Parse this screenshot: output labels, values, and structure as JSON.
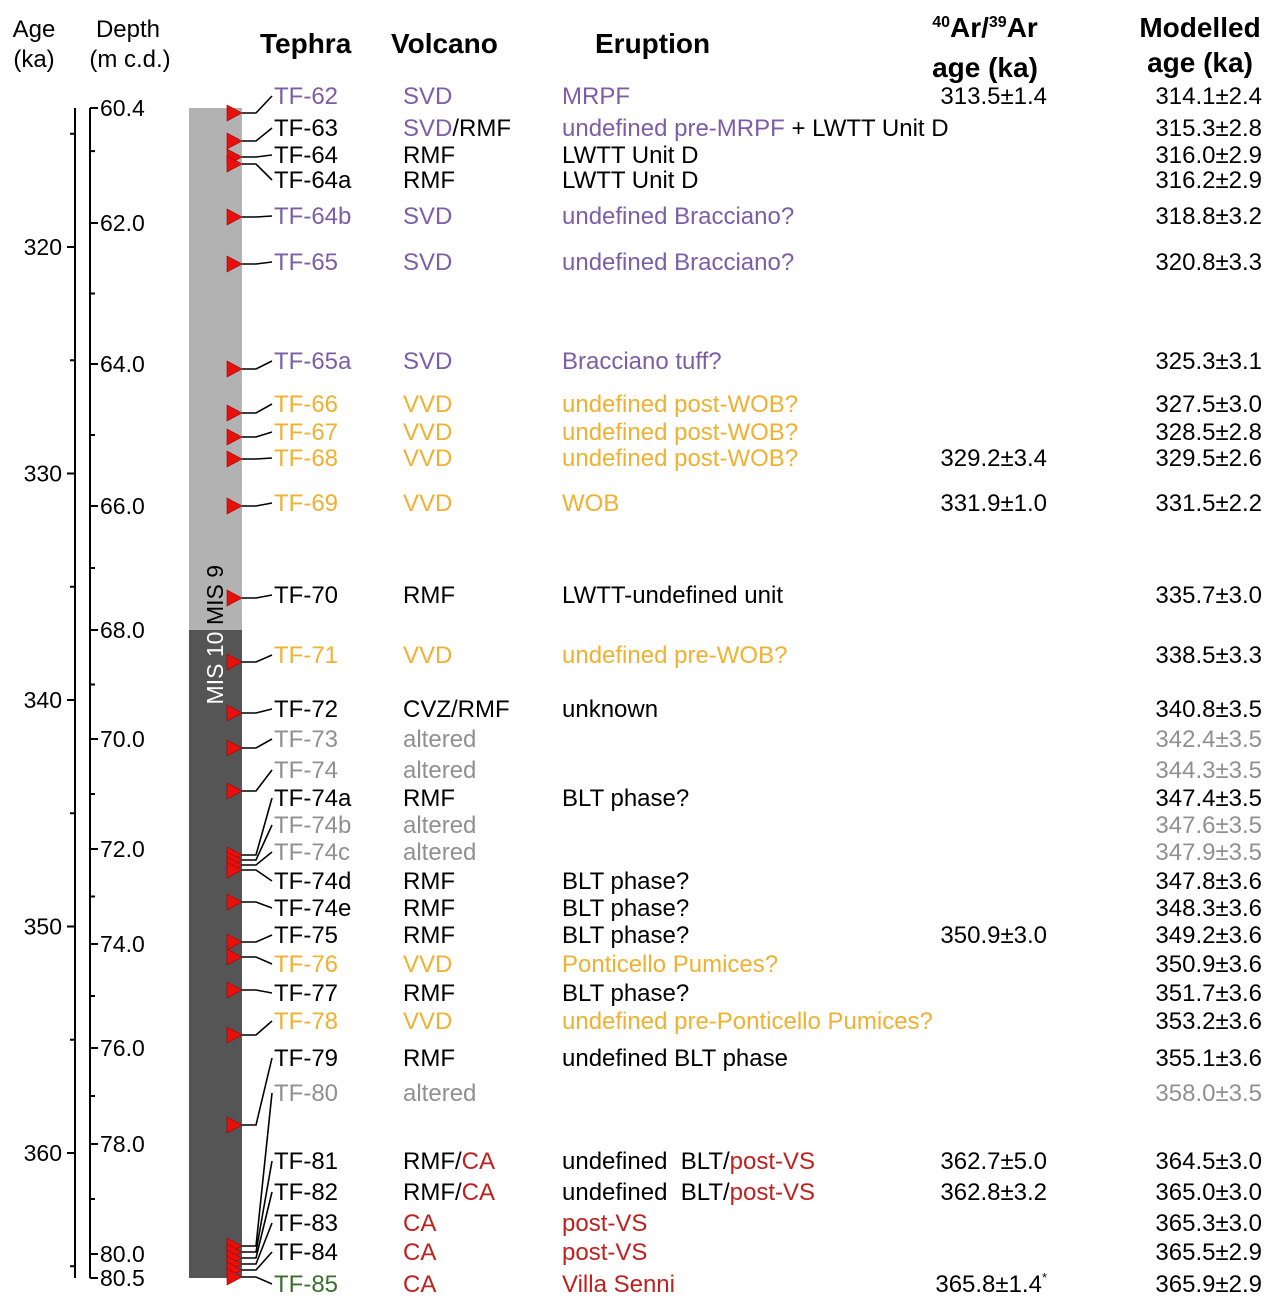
{
  "header": {
    "age": "Age",
    "age_unit": "(ka)",
    "depth": "Depth",
    "depth_unit": "(m c.d.)",
    "tephra": "Tephra",
    "volcano": "Volcano",
    "eruption": "Eruption",
    "ar_sup1": "40",
    "ar_mid": "Ar/",
    "ar_sup2": "39",
    "ar_end": "Ar",
    "ar_line2": "age (ka)",
    "modelled_line1": "Modelled",
    "modelled_line2": "age (ka)"
  },
  "colors": {
    "svd": "#7b5ea7",
    "vvd": "#f0b030",
    "altered": "#909090",
    "ca": "#c0201e",
    "villa": "#3a6e2e",
    "black": "#000000",
    "mis9": "#b2b2b2",
    "mis10": "#555555",
    "marker": "#e8100c"
  },
  "stages": [
    {
      "label": "MIS 9",
      "from_depth": 60.4,
      "to_depth": 68.0,
      "color": "#b2b2b2",
      "text_color": "#000000"
    },
    {
      "label": "MIS 10",
      "from_depth": 68.0,
      "to_depth": 80.5,
      "color": "#555555",
      "text_color": "#ffffff"
    }
  ],
  "age_ticks": [
    "320",
    "330",
    "340",
    "350",
    "360"
  ],
  "depth_ticks": [
    "60.4",
    "62.0",
    "64.0",
    "66.0",
    "68.0",
    "70.0",
    "72.0",
    "74.0",
    "76.0",
    "78.0",
    "80.0",
    "80.5"
  ],
  "rows": [
    {
      "tephra": "TF-62",
      "tc": "svd",
      "volcano": [
        {
          "t": "SVD",
          "c": "svd"
        }
      ],
      "eruption": [
        {
          "t": "MRPF",
          "c": "svd"
        }
      ],
      "ar_age": "313.5±1.4",
      "ar_note": "",
      "modelled": "314.1±2.4",
      "mc": "black"
    },
    {
      "tephra": "TF-63",
      "tc": "black",
      "volcano": [
        {
          "t": "SVD",
          "c": "svd"
        },
        {
          "t": "/RMF",
          "c": "black"
        }
      ],
      "eruption": [
        {
          "t": "undefined pre-MRPF",
          "c": "svd"
        },
        {
          "t": " + LWTT Unit D",
          "c": "black"
        }
      ],
      "ar_age": "",
      "ar_note": "",
      "modelled": "315.3±2.8",
      "mc": "black"
    },
    {
      "tephra": "TF-64",
      "tc": "black",
      "volcano": [
        {
          "t": "RMF",
          "c": "black"
        }
      ],
      "eruption": [
        {
          "t": "LWTT Unit D",
          "c": "black"
        }
      ],
      "ar_age": "",
      "ar_note": "",
      "modelled": "316.0±2.9",
      "mc": "black"
    },
    {
      "tephra": "TF-64a",
      "tc": "black",
      "volcano": [
        {
          "t": "RMF",
          "c": "black"
        }
      ],
      "eruption": [
        {
          "t": "LWTT Unit D",
          "c": "black"
        }
      ],
      "ar_age": "",
      "ar_note": "",
      "modelled": "316.2±2.9",
      "mc": "black"
    },
    {
      "tephra": "TF-64b",
      "tc": "svd",
      "volcano": [
        {
          "t": "SVD",
          "c": "svd"
        }
      ],
      "eruption": [
        {
          "t": "undefined Bracciano?",
          "c": "svd"
        }
      ],
      "ar_age": "",
      "ar_note": "",
      "modelled": "318.8±3.2",
      "mc": "black"
    },
    {
      "tephra": "TF-65",
      "tc": "svd",
      "volcano": [
        {
          "t": "SVD",
          "c": "svd"
        }
      ],
      "eruption": [
        {
          "t": "undefined Bracciano?",
          "c": "svd"
        }
      ],
      "ar_age": "",
      "ar_note": "",
      "modelled": "320.8±3.3",
      "mc": "black"
    },
    {
      "tephra": "TF-65a",
      "tc": "svd",
      "volcano": [
        {
          "t": "SVD",
          "c": "svd"
        }
      ],
      "eruption": [
        {
          "t": "Bracciano tuff?",
          "c": "svd"
        }
      ],
      "ar_age": "",
      "ar_note": "",
      "modelled": "325.3±3.1",
      "mc": "black"
    },
    {
      "tephra": "TF-66",
      "tc": "vvd",
      "volcano": [
        {
          "t": "VVD",
          "c": "vvd"
        }
      ],
      "eruption": [
        {
          "t": "undefined post-WOB?",
          "c": "vvd"
        }
      ],
      "ar_age": "",
      "ar_note": "",
      "modelled": "327.5±3.0",
      "mc": "black"
    },
    {
      "tephra": "TF-67",
      "tc": "vvd",
      "volcano": [
        {
          "t": "VVD",
          "c": "vvd"
        }
      ],
      "eruption": [
        {
          "t": "undefined post-WOB?",
          "c": "vvd"
        }
      ],
      "ar_age": "",
      "ar_note": "",
      "modelled": "328.5±2.8",
      "mc": "black"
    },
    {
      "tephra": "TF-68",
      "tc": "vvd",
      "volcano": [
        {
          "t": "VVD",
          "c": "vvd"
        }
      ],
      "eruption": [
        {
          "t": "undefined post-WOB?",
          "c": "vvd"
        }
      ],
      "ar_age": "329.2±3.4",
      "ar_note": "",
      "modelled": "329.5±2.6",
      "mc": "black"
    },
    {
      "tephra": "TF-69",
      "tc": "vvd",
      "volcano": [
        {
          "t": "VVD",
          "c": "vvd"
        }
      ],
      "eruption": [
        {
          "t": "WOB",
          "c": "vvd"
        }
      ],
      "ar_age": "331.9±1.0",
      "ar_note": "",
      "modelled": "331.5±2.2",
      "mc": "black"
    },
    {
      "tephra": "TF-70",
      "tc": "black",
      "volcano": [
        {
          "t": "RMF",
          "c": "black"
        }
      ],
      "eruption": [
        {
          "t": "LWTT-undefined unit",
          "c": "black"
        }
      ],
      "ar_age": "",
      "ar_note": "",
      "modelled": "335.7±3.0",
      "mc": "black"
    },
    {
      "tephra": "TF-71",
      "tc": "vvd",
      "volcano": [
        {
          "t": "VVD",
          "c": "vvd"
        }
      ],
      "eruption": [
        {
          "t": "undefined pre-WOB?",
          "c": "vvd"
        }
      ],
      "ar_age": "",
      "ar_note": "",
      "modelled": "338.5±3.3",
      "mc": "black"
    },
    {
      "tephra": "TF-72",
      "tc": "black",
      "volcano": [
        {
          "t": "CVZ/RMF",
          "c": "black"
        }
      ],
      "eruption": [
        {
          "t": "unknown",
          "c": "black"
        }
      ],
      "ar_age": "",
      "ar_note": "",
      "modelled": "340.8±3.5",
      "mc": "black"
    },
    {
      "tephra": "TF-73",
      "tc": "altered",
      "volcano": [
        {
          "t": "altered",
          "c": "altered"
        }
      ],
      "eruption": [],
      "ar_age": "",
      "ar_note": "",
      "modelled": "342.4±3.5",
      "mc": "altered"
    },
    {
      "tephra": "TF-74",
      "tc": "altered",
      "volcano": [
        {
          "t": "altered",
          "c": "altered"
        }
      ],
      "eruption": [],
      "ar_age": "",
      "ar_note": "",
      "modelled": "344.3±3.5",
      "mc": "altered"
    },
    {
      "tephra": "TF-74a",
      "tc": "black",
      "volcano": [
        {
          "t": "RMF",
          "c": "black"
        }
      ],
      "eruption": [
        {
          "t": "BLT phase?",
          "c": "black"
        }
      ],
      "ar_age": "",
      "ar_note": "",
      "modelled": "347.4±3.5",
      "mc": "black"
    },
    {
      "tephra": "TF-74b",
      "tc": "altered",
      "volcano": [
        {
          "t": "altered",
          "c": "altered"
        }
      ],
      "eruption": [],
      "ar_age": "",
      "ar_note": "",
      "modelled": "347.6±3.5",
      "mc": "altered"
    },
    {
      "tephra": "TF-74c",
      "tc": "altered",
      "volcano": [
        {
          "t": "altered",
          "c": "altered"
        }
      ],
      "eruption": [],
      "ar_age": "",
      "ar_note": "",
      "modelled": "347.9±3.5",
      "mc": "altered"
    },
    {
      "tephra": "TF-74d",
      "tc": "black",
      "volcano": [
        {
          "t": "RMF",
          "c": "black"
        }
      ],
      "eruption": [
        {
          "t": "BLT phase?",
          "c": "black"
        }
      ],
      "ar_age": "",
      "ar_note": "",
      "modelled": "347.8±3.6",
      "mc": "black"
    },
    {
      "tephra": "TF-74e",
      "tc": "black",
      "volcano": [
        {
          "t": "RMF",
          "c": "black"
        }
      ],
      "eruption": [
        {
          "t": "BLT phase?",
          "c": "black"
        }
      ],
      "ar_age": "",
      "ar_note": "",
      "modelled": "348.3±3.6",
      "mc": "black"
    },
    {
      "tephra": "TF-75",
      "tc": "black",
      "volcano": [
        {
          "t": "RMF",
          "c": "black"
        }
      ],
      "eruption": [
        {
          "t": "BLT phase?",
          "c": "black"
        }
      ],
      "ar_age": "350.9±3.0",
      "ar_note": "",
      "modelled": "349.2±3.6",
      "mc": "black"
    },
    {
      "tephra": "TF-76",
      "tc": "vvd",
      "volcano": [
        {
          "t": "VVD",
          "c": "vvd"
        }
      ],
      "eruption": [
        {
          "t": "Ponticello Pumices?",
          "c": "vvd"
        }
      ],
      "ar_age": "",
      "ar_note": "",
      "modelled": "350.9±3.6",
      "mc": "black"
    },
    {
      "tephra": "TF-77",
      "tc": "black",
      "volcano": [
        {
          "t": "RMF",
          "c": "black"
        }
      ],
      "eruption": [
        {
          "t": "BLT phase?",
          "c": "black"
        }
      ],
      "ar_age": "",
      "ar_note": "",
      "modelled": "351.7±3.6",
      "mc": "black"
    },
    {
      "tephra": "TF-78",
      "tc": "vvd",
      "volcano": [
        {
          "t": "VVD",
          "c": "vvd"
        }
      ],
      "eruption": [
        {
          "t": "undefined pre-Ponticello Pumices?",
          "c": "vvd"
        }
      ],
      "ar_age": "",
      "ar_note": "",
      "modelled": "353.2±3.6",
      "mc": "black"
    },
    {
      "tephra": "TF-79",
      "tc": "black",
      "volcano": [
        {
          "t": "RMF",
          "c": "black"
        }
      ],
      "eruption": [
        {
          "t": "undefined BLT phase",
          "c": "black"
        }
      ],
      "ar_age": "",
      "ar_note": "",
      "modelled": "355.1±3.6",
      "mc": "black"
    },
    {
      "tephra": "TF-80",
      "tc": "altered",
      "volcano": [
        {
          "t": "altered",
          "c": "altered"
        }
      ],
      "eruption": [],
      "ar_age": "",
      "ar_note": "",
      "modelled": "358.0±3.5",
      "mc": "altered"
    },
    {
      "tephra": "TF-81",
      "tc": "black",
      "volcano": [
        {
          "t": "RMF",
          "c": "black"
        },
        {
          "t": "/",
          "c": "black"
        },
        {
          "t": "CA",
          "c": "ca"
        }
      ],
      "eruption": [
        {
          "t": "undefined  BLT/",
          "c": "black"
        },
        {
          "t": "post-VS",
          "c": "ca"
        }
      ],
      "ar_age": "362.7±5.0",
      "ar_note": "",
      "modelled": "364.5±3.0",
      "mc": "black"
    },
    {
      "tephra": "TF-82",
      "tc": "black",
      "volcano": [
        {
          "t": "RMF",
          "c": "black"
        },
        {
          "t": "/",
          "c": "black"
        },
        {
          "t": "CA",
          "c": "ca"
        }
      ],
      "eruption": [
        {
          "t": "undefined  BLT/",
          "c": "black"
        },
        {
          "t": "post-VS",
          "c": "ca"
        }
      ],
      "ar_age": "362.8±3.2",
      "ar_note": "",
      "modelled": "365.0±3.0",
      "mc": "black"
    },
    {
      "tephra": "TF-83",
      "tc": "black",
      "volcano": [
        {
          "t": "CA",
          "c": "ca"
        }
      ],
      "eruption": [
        {
          "t": "post-VS",
          "c": "ca"
        }
      ],
      "ar_age": "",
      "ar_note": "",
      "modelled": "365.3±3.0",
      "mc": "black"
    },
    {
      "tephra": "TF-84",
      "tc": "black",
      "volcano": [
        {
          "t": "CA",
          "c": "ca"
        }
      ],
      "eruption": [
        {
          "t": "post-VS",
          "c": "ca"
        }
      ],
      "ar_age": "",
      "ar_note": "",
      "modelled": "365.5±2.9",
      "mc": "black"
    },
    {
      "tephra": "TF-85",
      "tc": "villa",
      "volcano": [
        {
          "t": "CA",
          "c": "ca"
        }
      ],
      "eruption": [
        {
          "t": "Villa Senni",
          "c": "ca"
        }
      ],
      "ar_age": "365.8±1.4",
      "ar_note": "*",
      "modelled": "365.9±2.9",
      "mc": "black"
    }
  ]
}
